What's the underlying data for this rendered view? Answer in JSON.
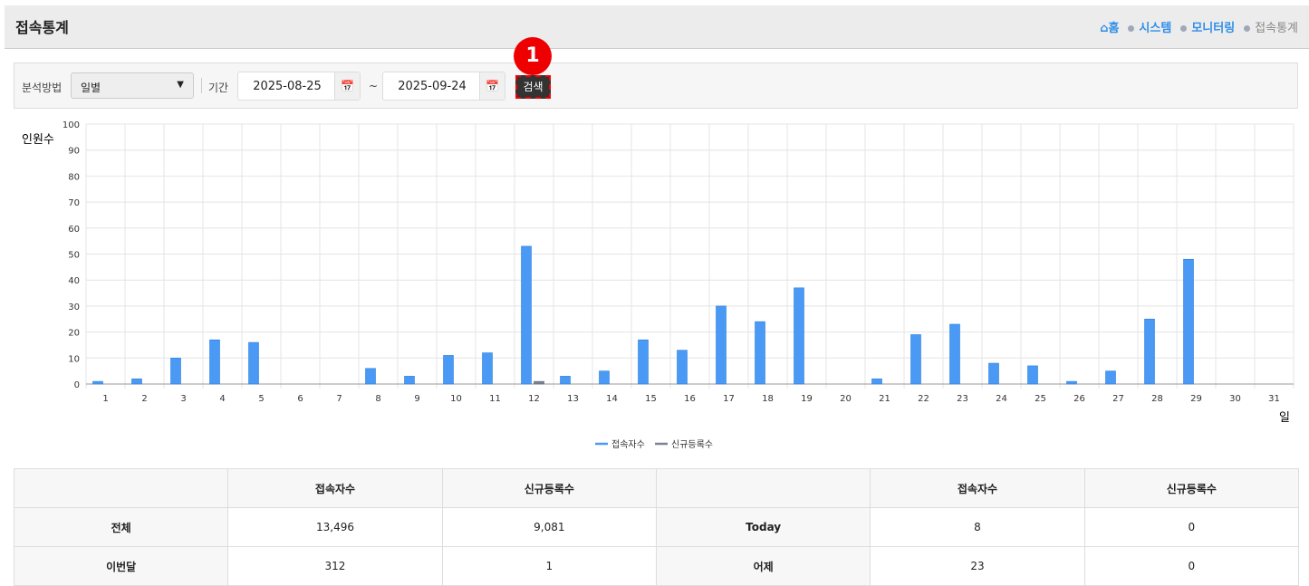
{
  "header": {
    "title": "접속통계",
    "breadcrumb": [
      "홈",
      "시스템",
      "모니터링",
      "접속통계"
    ]
  },
  "search": {
    "method_label": "분석방법",
    "method_value": "일별",
    "period_label": "기간",
    "start_date": "2025-08-25",
    "tilde": "~",
    "end_date": "2025-09-24",
    "search_label": "검색",
    "step_badge": "1"
  },
  "chart_data": {
    "type": "bar",
    "ylabel": "인원수",
    "xlabel": "일",
    "ylim": [
      0,
      100
    ],
    "yticks": [
      0,
      10,
      20,
      30,
      40,
      50,
      60,
      70,
      80,
      90,
      100
    ],
    "grid": true,
    "legend": "bottom",
    "categories": [
      "1",
      "2",
      "3",
      "4",
      "5",
      "6",
      "7",
      "8",
      "9",
      "10",
      "11",
      "12",
      "13",
      "14",
      "15",
      "16",
      "17",
      "18",
      "19",
      "20",
      "21",
      "22",
      "23",
      "24",
      "25",
      "26",
      "27",
      "28",
      "29",
      "30",
      "31"
    ],
    "series": [
      {
        "name": "접속자수",
        "color": "#4a9af5",
        "values": [
          1,
          2,
          10,
          17,
          16,
          0,
          0,
          6,
          3,
          11,
          12,
          53,
          3,
          5,
          17,
          13,
          30,
          24,
          37,
          0,
          2,
          19,
          23,
          8,
          7,
          1,
          5,
          25,
          48,
          0,
          0
        ]
      },
      {
        "name": "신규등록수",
        "color": "#7a8494",
        "values": [
          0,
          0,
          0,
          0,
          0,
          0,
          0,
          0,
          0,
          0,
          0,
          1,
          0,
          0,
          0,
          0,
          0,
          0,
          0,
          0,
          0,
          0,
          0,
          0,
          0,
          0,
          0,
          0,
          0,
          0,
          0
        ]
      }
    ]
  },
  "table": {
    "headers": [
      "",
      "접속자수",
      "신규등록수",
      "",
      "접속자수",
      "신규등록수"
    ],
    "rows": [
      [
        "전체",
        "13,496",
        "9,081",
        "Today",
        "8",
        "0"
      ],
      [
        "이번달",
        "312",
        "1",
        "어제",
        "23",
        "0"
      ]
    ]
  }
}
